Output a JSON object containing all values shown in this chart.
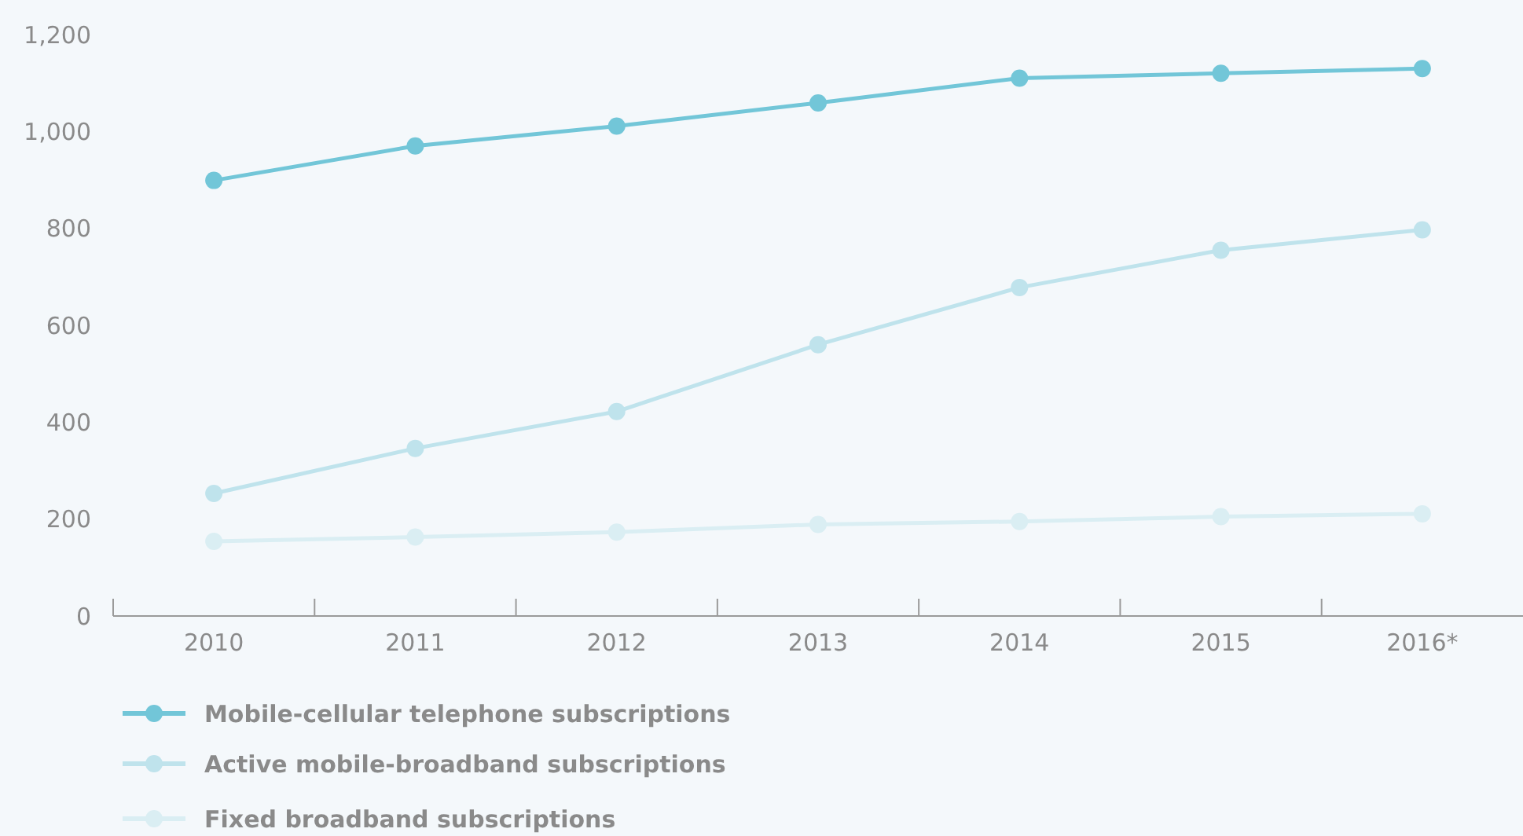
{
  "chart_data": {
    "type": "line",
    "categories": [
      "2010",
      "2011",
      "2012",
      "2013",
      "2014",
      "2015",
      "2016*"
    ],
    "series": [
      {
        "name": "Mobile-cellular telephone subscriptions",
        "color": "#72c6d8",
        "values": [
          899,
          970,
          1011,
          1059,
          1110,
          1120,
          1130
        ]
      },
      {
        "name": "Active mobile-broadband subscriptions",
        "color": "#bfe3ec",
        "values": [
          253,
          346,
          422,
          560,
          678,
          755,
          797
        ]
      },
      {
        "name": "Fixed broadband subscriptions",
        "color": "#daeef3",
        "values": [
          154,
          163,
          173,
          189,
          195,
          205,
          211
        ]
      }
    ],
    "ylim": [
      0,
      1200
    ],
    "yticks": [
      0,
      {
        "value": 200,
        "label": "200"
      },
      {
        "value": 400,
        "label": "400"
      },
      {
        "value": 600,
        "label": "600"
      },
      {
        "value": 800,
        "label": "800"
      },
      {
        "value": 1000,
        "label": "1,000"
      },
      {
        "value": 1200,
        "label": "1,200"
      }
    ],
    "grid": false,
    "legend": "bottom left",
    "marker": "circle",
    "line_style": "solid"
  }
}
